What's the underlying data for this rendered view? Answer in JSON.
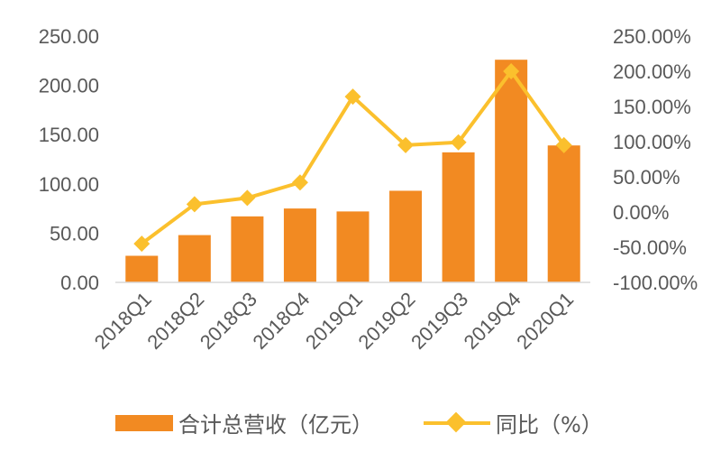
{
  "chart_data": {
    "type": "bar",
    "categories": [
      "2018Q1",
      "2018Q2",
      "2018Q3",
      "2018Q4",
      "2019Q1",
      "2019Q2",
      "2019Q3",
      "2019Q4",
      "2020Q1"
    ],
    "series": [
      {
        "name": "合计总营收（亿元）",
        "type": "bar",
        "axis": "left",
        "values": [
          27,
          48,
          67,
          75,
          72,
          93,
          132,
          226,
          139
        ]
      },
      {
        "name": "同比（%）",
        "type": "line",
        "axis": "right",
        "values": [
          -45,
          11,
          20,
          42,
          164,
          95,
          99,
          200,
          95
        ]
      }
    ],
    "y_left": {
      "ylim": [
        0,
        250
      ],
      "ticks": [
        "0.00",
        "50.00",
        "100.00",
        "150.00",
        "200.00",
        "250.00"
      ]
    },
    "y_right": {
      "ylim": [
        -100,
        250
      ],
      "ticks": [
        "-100.00%",
        "-50.00%",
        "0.00%",
        "50.00%",
        "100.00%",
        "150.00%",
        "200.00%",
        "250.00%"
      ]
    },
    "title": "",
    "xlabel": "",
    "legend_position": "bottom",
    "grid": false,
    "colors": {
      "bar": "#F28A22",
      "line": "#FBC02D",
      "axis": "#D9D9D9",
      "text": "#595959"
    }
  }
}
